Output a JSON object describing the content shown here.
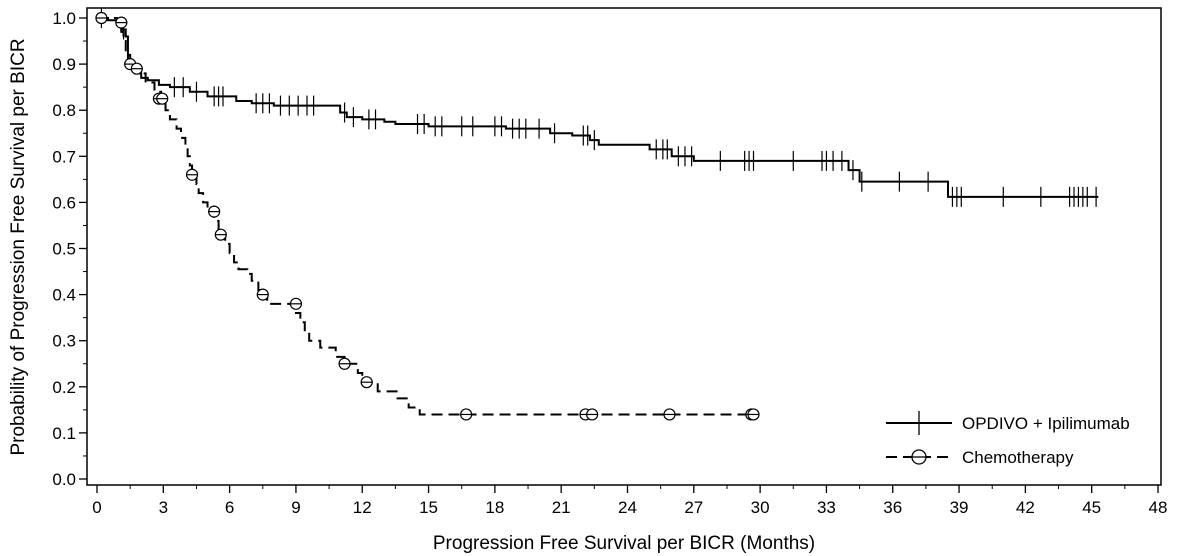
{
  "chart_data": {
    "type": "line",
    "subtype": "kaplan-meier step curves",
    "xlabel": "Progression Free Survival per BICR (Months)",
    "ylabel": "Probability of Progression Free Survival per BICR",
    "xlim": [
      0,
      48
    ],
    "ylim": [
      0,
      1.0
    ],
    "x_ticks": [
      "0",
      "3",
      "6",
      "9",
      "12",
      "15",
      "18",
      "21",
      "24",
      "27",
      "30",
      "33",
      "36",
      "39",
      "42",
      "45",
      "48"
    ],
    "x_tick_values": [
      0,
      3,
      6,
      9,
      12,
      15,
      18,
      21,
      24,
      27,
      30,
      33,
      36,
      39,
      42,
      45,
      48
    ],
    "y_ticks": [
      "0.0",
      "0.1",
      "0.2",
      "0.3",
      "0.4",
      "0.5",
      "0.6",
      "0.7",
      "0.8",
      "0.9",
      "1.0"
    ],
    "y_tick_values": [
      0.0,
      0.1,
      0.2,
      0.3,
      0.4,
      0.5,
      0.6,
      0.7,
      0.8,
      0.9,
      1.0
    ],
    "grid": false,
    "legend_placement": "bottom-right",
    "series": [
      {
        "name": "OPDIVO + Ipilimumab",
        "line_style": "solid",
        "censor_marker": "plus",
        "color": "#000000",
        "steps": [
          [
            0,
            1.0
          ],
          [
            0.5,
            0.995
          ],
          [
            0.9,
            0.985
          ],
          [
            1.1,
            0.975
          ],
          [
            1.3,
            0.96
          ],
          [
            1.4,
            0.92
          ],
          [
            1.5,
            0.9
          ],
          [
            1.6,
            0.89
          ],
          [
            1.8,
            0.88
          ],
          [
            2.0,
            0.87
          ],
          [
            2.3,
            0.865
          ],
          [
            2.8,
            0.855
          ],
          [
            3.3,
            0.85
          ],
          [
            4.2,
            0.84
          ],
          [
            5.0,
            0.83
          ],
          [
            6.3,
            0.82
          ],
          [
            7.0,
            0.815
          ],
          [
            8.0,
            0.81
          ],
          [
            11.0,
            0.795
          ],
          [
            11.3,
            0.785
          ],
          [
            12.0,
            0.78
          ],
          [
            13.0,
            0.775
          ],
          [
            13.5,
            0.77
          ],
          [
            15.0,
            0.765
          ],
          [
            18.5,
            0.76
          ],
          [
            20.5,
            0.75
          ],
          [
            21.5,
            0.745
          ],
          [
            22.3,
            0.735
          ],
          [
            22.7,
            0.725
          ],
          [
            25.0,
            0.715
          ],
          [
            26.0,
            0.7
          ],
          [
            27.0,
            0.69
          ],
          [
            34.0,
            0.67
          ],
          [
            34.5,
            0.645
          ],
          [
            38.5,
            0.612
          ]
        ],
        "end_x": 45.3,
        "censored": [
          [
            0.2,
            1.0
          ],
          [
            1.2,
            0.975
          ],
          [
            3.5,
            0.85
          ],
          [
            3.9,
            0.85
          ],
          [
            4.5,
            0.84
          ],
          [
            5.3,
            0.83
          ],
          [
            5.5,
            0.83
          ],
          [
            5.7,
            0.83
          ],
          [
            7.2,
            0.815
          ],
          [
            7.5,
            0.815
          ],
          [
            7.8,
            0.815
          ],
          [
            8.3,
            0.81
          ],
          [
            8.7,
            0.81
          ],
          [
            9.1,
            0.81
          ],
          [
            9.5,
            0.81
          ],
          [
            9.8,
            0.81
          ],
          [
            11.2,
            0.795
          ],
          [
            11.6,
            0.785
          ],
          [
            12.3,
            0.78
          ],
          [
            12.6,
            0.78
          ],
          [
            14.5,
            0.77
          ],
          [
            14.8,
            0.77
          ],
          [
            15.3,
            0.765
          ],
          [
            15.6,
            0.765
          ],
          [
            16.5,
            0.765
          ],
          [
            17.0,
            0.765
          ],
          [
            18.0,
            0.765
          ],
          [
            18.3,
            0.765
          ],
          [
            18.8,
            0.76
          ],
          [
            19.1,
            0.76
          ],
          [
            19.4,
            0.76
          ],
          [
            20.0,
            0.76
          ],
          [
            20.7,
            0.75
          ],
          [
            22.0,
            0.745
          ],
          [
            22.2,
            0.745
          ],
          [
            22.5,
            0.735
          ],
          [
            25.3,
            0.715
          ],
          [
            25.6,
            0.715
          ],
          [
            25.8,
            0.715
          ],
          [
            26.3,
            0.7
          ],
          [
            26.6,
            0.7
          ],
          [
            26.9,
            0.7
          ],
          [
            28.2,
            0.69
          ],
          [
            29.3,
            0.69
          ],
          [
            29.5,
            0.69
          ],
          [
            29.7,
            0.69
          ],
          [
            31.5,
            0.69
          ],
          [
            32.8,
            0.69
          ],
          [
            33.0,
            0.69
          ],
          [
            33.3,
            0.69
          ],
          [
            33.7,
            0.69
          ],
          [
            34.2,
            0.67
          ],
          [
            34.6,
            0.645
          ],
          [
            36.3,
            0.645
          ],
          [
            37.6,
            0.645
          ],
          [
            38.7,
            0.612
          ],
          [
            38.9,
            0.612
          ],
          [
            39.1,
            0.612
          ],
          [
            41.0,
            0.612
          ],
          [
            42.7,
            0.612
          ],
          [
            44.0,
            0.612
          ],
          [
            44.2,
            0.612
          ],
          [
            44.4,
            0.612
          ],
          [
            44.6,
            0.612
          ],
          [
            44.8,
            0.612
          ],
          [
            45.2,
            0.612
          ]
        ]
      },
      {
        "name": "Chemotherapy",
        "line_style": "dashed",
        "censor_marker": "circle",
        "color": "#000000",
        "steps": [
          [
            0,
            1.0
          ],
          [
            0.9,
            0.99
          ],
          [
            1.1,
            0.97
          ],
          [
            1.2,
            0.95
          ],
          [
            1.3,
            0.93
          ],
          [
            1.4,
            0.9
          ],
          [
            1.6,
            0.89
          ],
          [
            1.9,
            0.88
          ],
          [
            2.2,
            0.86
          ],
          [
            2.6,
            0.84
          ],
          [
            2.9,
            0.825
          ],
          [
            3.1,
            0.8
          ],
          [
            3.3,
            0.78
          ],
          [
            3.6,
            0.76
          ],
          [
            3.8,
            0.74
          ],
          [
            4.0,
            0.72
          ],
          [
            4.1,
            0.7
          ],
          [
            4.2,
            0.68
          ],
          [
            4.3,
            0.66
          ],
          [
            4.5,
            0.64
          ],
          [
            4.6,
            0.62
          ],
          [
            4.8,
            0.6
          ],
          [
            5.0,
            0.58
          ],
          [
            5.3,
            0.56
          ],
          [
            5.5,
            0.54
          ],
          [
            5.7,
            0.53
          ],
          [
            5.8,
            0.51
          ],
          [
            6.0,
            0.49
          ],
          [
            6.2,
            0.47
          ],
          [
            6.4,
            0.455
          ],
          [
            6.8,
            0.445
          ],
          [
            7.0,
            0.43
          ],
          [
            7.3,
            0.41
          ],
          [
            7.5,
            0.4
          ],
          [
            7.7,
            0.38
          ],
          [
            8.1,
            0.38
          ],
          [
            9.0,
            0.36
          ],
          [
            9.2,
            0.34
          ],
          [
            9.4,
            0.32
          ],
          [
            9.6,
            0.3
          ],
          [
            10.1,
            0.285
          ],
          [
            10.8,
            0.265
          ],
          [
            11.2,
            0.25
          ],
          [
            11.8,
            0.23
          ],
          [
            12.0,
            0.21
          ],
          [
            12.7,
            0.19
          ],
          [
            13.6,
            0.175
          ],
          [
            14.1,
            0.155
          ],
          [
            14.6,
            0.14
          ]
        ],
        "end_x": 29.8,
        "censored": [
          [
            0.2,
            1.0
          ],
          [
            1.1,
            0.99
          ],
          [
            1.5,
            0.9
          ],
          [
            1.8,
            0.89
          ],
          [
            2.8,
            0.825
          ],
          [
            2.95,
            0.825
          ],
          [
            4.3,
            0.66
          ],
          [
            5.3,
            0.58
          ],
          [
            5.6,
            0.53
          ],
          [
            7.5,
            0.4
          ],
          [
            9.0,
            0.38
          ],
          [
            11.2,
            0.25
          ],
          [
            12.2,
            0.21
          ],
          [
            16.7,
            0.14
          ],
          [
            22.1,
            0.14
          ],
          [
            22.4,
            0.14
          ],
          [
            25.9,
            0.14
          ],
          [
            29.6,
            0.14
          ],
          [
            29.7,
            0.14
          ]
        ]
      }
    ]
  }
}
